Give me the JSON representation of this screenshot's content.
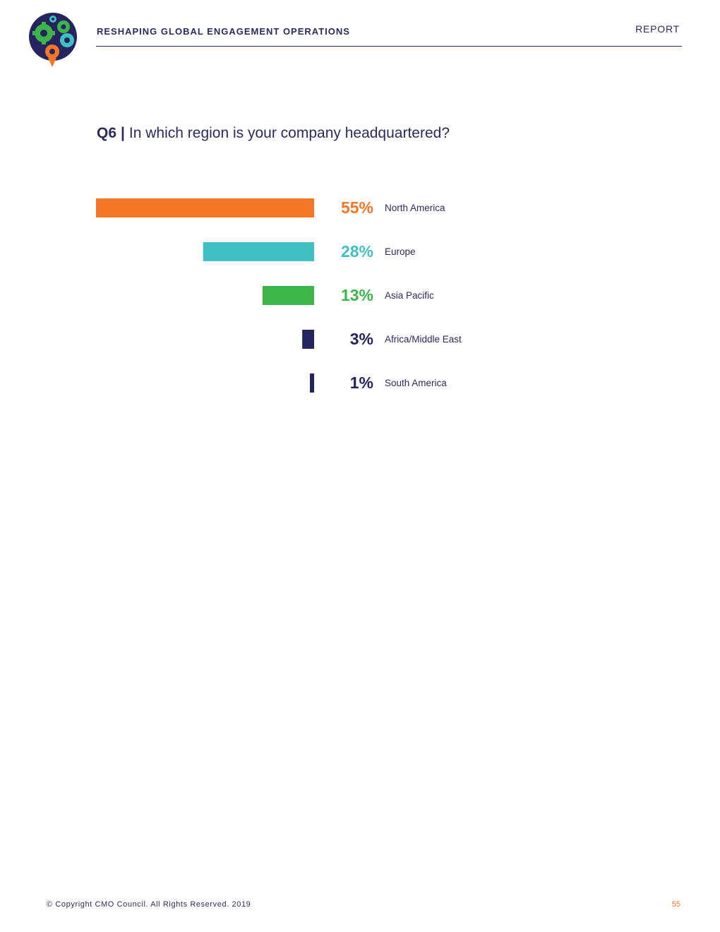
{
  "header": {
    "title": "RESHAPING GLOBAL ENGAGEMENT OPERATIONS",
    "report_label": "REPORT",
    "logo_icon": "gears-logo-icon"
  },
  "question": {
    "number": "Q6",
    "separator": "|",
    "text": "In which region is your company headquartered?"
  },
  "chart_data": {
    "type": "bar",
    "orientation": "horizontal",
    "categories": [
      "North America",
      "Europe",
      "Asia Pacific",
      "Africa/Middle East",
      "South America"
    ],
    "values": [
      55,
      28,
      13,
      3,
      1
    ],
    "value_labels": [
      "55%",
      "28%",
      "13%",
      "3%",
      "1%"
    ],
    "colors": [
      "#f37726",
      "#41c0c4",
      "#3db54a",
      "#25245e",
      "#25245e"
    ],
    "xlim": [
      0,
      55
    ],
    "grid": false,
    "legend": "none"
  },
  "footer": {
    "copyright": "© Copyright CMO Council. All Rights Reserved. 2019",
    "page_number": "55"
  }
}
